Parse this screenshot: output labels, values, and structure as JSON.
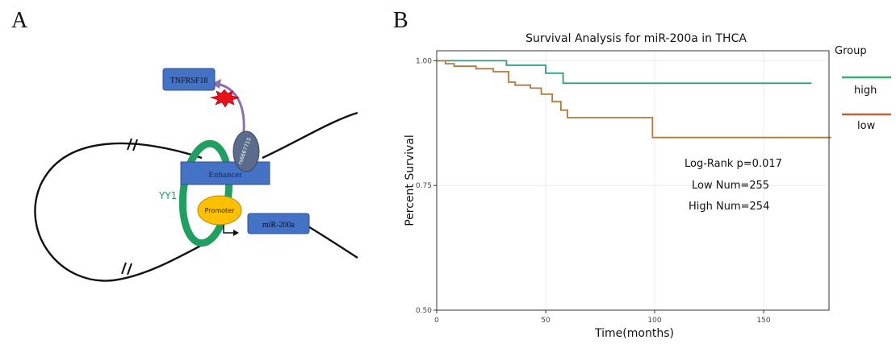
{
  "panel_a": {
    "letter": "A",
    "labels": {
      "tnfrsf18": "TNFRSF18",
      "snp": "rs6667715",
      "enhancer": "Enhancer",
      "yy1": "YY1",
      "promoter": "Promoter",
      "mir": "miR-200a"
    },
    "colors": {
      "box": "#4472C4",
      "yy1": "#1FA060",
      "promoter": "#FFC000",
      "snp": "#5B6B8C",
      "star": "#E8101A"
    }
  },
  "panel_b": {
    "letter": "B",
    "legend": {
      "title": "Group",
      "items": [
        {
          "label": "high",
          "color": "#36B070"
        },
        {
          "label": "low",
          "color": "#C0623A"
        }
      ]
    },
    "stats": {
      "pvalue": "Log-Rank p=0.017",
      "low_num": "Low Num=255",
      "high_num": "High Num=254"
    }
  },
  "chart_data": {
    "type": "line",
    "title": "Survival Analysis for miR-200a in THCA",
    "xlabel": "Time(months)",
    "ylabel": "Percent Survival",
    "xlim": [
      0,
      180
    ],
    "ylim": [
      0.5,
      1.02
    ],
    "xticks": [
      0,
      50,
      100,
      150
    ],
    "yticks": [
      0.5,
      0.75,
      1.0
    ],
    "ytick_labels": [
      "0.50",
      "0.75",
      "1.00"
    ],
    "grid": true,
    "legend": "right",
    "series": [
      {
        "name": "high",
        "color": "#2A9D86",
        "x": [
          0,
          32,
          50,
          58,
          172
        ],
        "y": [
          1.0,
          0.991,
          0.975,
          0.955,
          0.955
        ]
      },
      {
        "name": "low",
        "color": "#B07A3E",
        "x": [
          0,
          4,
          8,
          18,
          26,
          33,
          36,
          43,
          48,
          53,
          57,
          60,
          99,
          181
        ],
        "y": [
          1.0,
          0.994,
          0.989,
          0.984,
          0.978,
          0.957,
          0.951,
          0.945,
          0.933,
          0.918,
          0.901,
          0.886,
          0.846,
          0.846
        ]
      }
    ]
  }
}
